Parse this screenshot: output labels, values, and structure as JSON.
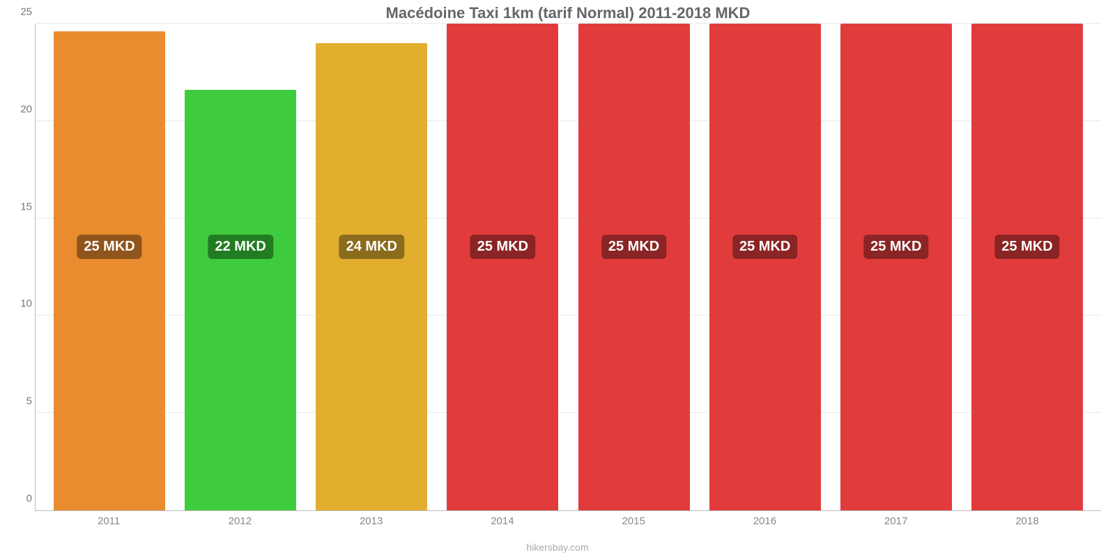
{
  "chart": {
    "type": "bar",
    "title": "Macédoine Taxi 1km (tarif Normal) 2011-2018 MKD",
    "title_fontsize": 22,
    "title_color": "#666666",
    "background_color": "#ffffff",
    "grid_color": "#e9e9e9",
    "axis_color": "#bbbbbb",
    "tick_label_color": "#777777",
    "tick_label_fontsize": 15,
    "x_tick_label_color": "#888888",
    "ylim_min": 0,
    "ylim_max": 25,
    "ytick_step": 5,
    "yticks": [
      0,
      5,
      10,
      15,
      20,
      25
    ],
    "bar_width_pct": 85,
    "bar_label_fontsize": 20,
    "bar_label_text_color": "#ffffff",
    "bar_label_radius": 6,
    "bar_label_y_value": 13.5,
    "attribution": "hikersbay.com",
    "attribution_color": "#aaaaaa",
    "attribution_fontsize": 14,
    "categories": [
      "2011",
      "2012",
      "2013",
      "2014",
      "2015",
      "2016",
      "2017",
      "2018"
    ],
    "series": [
      {
        "value": 24.6,
        "label": "25 MKD",
        "color": "#e98c2f",
        "label_bg": "#8f551c"
      },
      {
        "value": 21.6,
        "label": "22 MKD",
        "color": "#3ecb3e",
        "label_bg": "#227c22"
      },
      {
        "value": 24.0,
        "label": "24 MKD",
        "color": "#e2ae2e",
        "label_bg": "#8a6c1c"
      },
      {
        "value": 25.0,
        "label": "25 MKD",
        "color": "#e23b3b",
        "label_bg": "#8b2424"
      },
      {
        "value": 25.0,
        "label": "25 MKD",
        "color": "#e23b3b",
        "label_bg": "#8b2424"
      },
      {
        "value": 25.0,
        "label": "25 MKD",
        "color": "#e23b3b",
        "label_bg": "#8b2424"
      },
      {
        "value": 25.0,
        "label": "25 MKD",
        "color": "#e23b3b",
        "label_bg": "#8b2424"
      },
      {
        "value": 25.0,
        "label": "25 MKD",
        "color": "#e23b3b",
        "label_bg": "#8b2424"
      }
    ]
  }
}
